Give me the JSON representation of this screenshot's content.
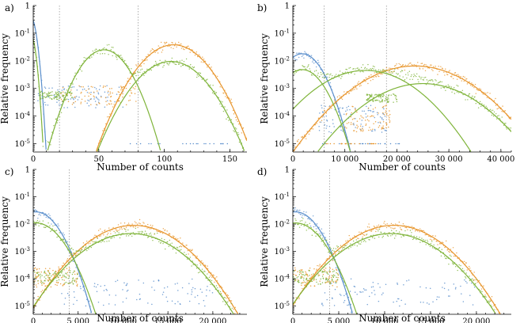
{
  "colors": {
    "blue": "#5b8fcc",
    "orange": "#e8962e",
    "green": "#7fb43a",
    "thresholds": "#9a9a9a"
  },
  "chart_data": [
    {
      "panel_label": "a)",
      "type": "scatter",
      "ylabel": "Relative frequency",
      "xlabel": "Number of counts",
      "xlim": [
        0,
        163
      ],
      "ylog": true,
      "ylim_exp": [
        -5.3,
        0
      ],
      "x_ticks": [
        0,
        50,
        100,
        150
      ],
      "x_tick_labels": [
        "0",
        "50",
        "100",
        "150"
      ],
      "y_tick_labels": [
        "1",
        "10",
        "10",
        "10",
        "10",
        "10"
      ],
      "y_tick_exponents": [
        "",
        "-1",
        "-2",
        "-3",
        "-4",
        "-5"
      ],
      "threshold_lines": [
        20,
        80
      ],
      "series": [
        {
          "name": "blue",
          "curve": [
            {
              "type": "gauss",
              "mu": -2,
              "sigma": 2.5,
              "peak": 0.4,
              "min_log": -5.3
            }
          ],
          "noise": {
            "x": [
              3,
              70
            ],
            "log_y": [
              -3.7,
              -2.9
            ]
          },
          "floor_x": [
            72,
            152
          ]
        },
        {
          "name": "orange",
          "curve": [
            {
              "type": "gauss",
              "mu": 107,
              "sigma": 14,
              "peak": 0.038,
              "min_log": -5.3
            }
          ],
          "noise": {
            "x": [
              20,
              80
            ],
            "log_y": [
              -3.6,
              -2.9
            ]
          }
        },
        {
          "name": "green",
          "curve": [
            {
              "type": "gauss",
              "mu": -2,
              "sigma": 2.2,
              "peak": 0.09,
              "min_log": -5.3
            },
            {
              "type": "gauss",
              "mu": 54,
              "sigma": 10.5,
              "peak": 0.025,
              "min_log": -5.3
            },
            {
              "type": "gauss",
              "mu": 105,
              "sigma": 14.5,
              "peak": 0.0095,
              "min_log": -5.3
            }
          ],
          "noise": {
            "x": [
              5,
              30
            ],
            "log_y": [
              -3.4,
              -3.1
            ]
          }
        }
      ]
    },
    {
      "panel_label": "b)",
      "type": "scatter",
      "ylabel": "Relative frequency",
      "xlabel": "Number of counts",
      "xlim": [
        0,
        42000
      ],
      "ylog": true,
      "ylim_exp": [
        -5.3,
        0
      ],
      "x_ticks": [
        0,
        10000,
        20000,
        30000,
        40000
      ],
      "x_tick_labels": [
        "0",
        "10 000",
        "20 000",
        "30 000",
        "40 000"
      ],
      "y_tick_labels": [
        "1",
        "10",
        "10",
        "10",
        "10",
        "10"
      ],
      "y_tick_exponents": [
        "",
        "-1",
        "-2",
        "-3",
        "-4",
        "-5"
      ],
      "threshold_lines": [
        6000,
        18000
      ],
      "series": [
        {
          "name": "blue",
          "curve": [
            {
              "type": "gauss",
              "mu": 1800,
              "sigma": 2300,
              "peak": 0.018,
              "min_log": -5.3
            }
          ],
          "noise": {
            "x": [
              5000,
              18000
            ],
            "log_y": [
              -4.6,
              -3.6
            ]
          },
          "floor_x": [
            5000,
            21000
          ]
        },
        {
          "name": "orange",
          "curve": [
            {
              "type": "gauss",
              "mu": 23500,
              "sigma": 6200,
              "peak": 0.0065,
              "min_log": -5.3
            }
          ],
          "noise": {
            "x": [
              10000,
              19000
            ],
            "log_y": [
              -4.6,
              -3.6
            ]
          },
          "floor_x": [
            6000,
            16000
          ]
        },
        {
          "name": "green",
          "curve": [
            {
              "type": "gauss",
              "mu": 1800,
              "sigma": 2500,
              "peak": 0.0048,
              "min_log": -5.3
            },
            {
              "type": "gauss",
              "mu": 14000,
              "sigma": 5500,
              "peak": 0.0045,
              "min_log": -5.3
            },
            {
              "type": "gauss",
              "mu": 25000,
              "sigma": 6000,
              "peak": 0.0015,
              "min_log": -5.3
            }
          ],
          "noise": {
            "x": [
              14000,
              20000
            ],
            "log_y": [
              -3.5,
              -3.2
            ]
          }
        }
      ]
    },
    {
      "panel_label": "c)",
      "type": "scatter",
      "ylabel": "Relative frequency",
      "xlabel": "Number of counts",
      "xlim": [
        0,
        23800
      ],
      "ylog": true,
      "ylim_exp": [
        -5.3,
        0
      ],
      "x_ticks": [
        0,
        5000,
        10000,
        15000,
        20000
      ],
      "x_tick_labels": [
        "0",
        "5 000",
        "10 000",
        "15 000",
        "20 000"
      ],
      "y_tick_labels": [
        "1",
        "10",
        "10",
        "10",
        "10",
        "10"
      ],
      "y_tick_exponents": [
        "",
        "-1",
        "-2",
        "-3",
        "-4",
        "-5"
      ],
      "threshold_lines": [
        4000
      ],
      "series": [
        {
          "name": "blue",
          "curve": [
            {
              "type": "gauss",
              "mu": 300,
              "sigma": 1500,
              "peak": 0.028,
              "min_log": -5.3
            }
          ],
          "noise": {
            "x": [
              3000,
              20000
            ],
            "log_y": [
              -5.0,
              -4.0
            ]
          }
        },
        {
          "name": "orange",
          "curve": [
            {
              "type": "gauss",
              "mu": 11200,
              "sigma": 3000,
              "peak": 0.009,
              "min_log": -5.3
            }
          ],
          "noise": {
            "x": [
              0,
              5000
            ],
            "log_y": [
              -4.3,
              -3.6
            ]
          }
        },
        {
          "name": "green",
          "curve": [
            {
              "type": "gauss",
              "mu": 300,
              "sigma": 1700,
              "peak": 0.011,
              "min_log": -5.3
            },
            {
              "type": "gauss",
              "mu": 10900,
              "sigma": 3100,
              "peak": 0.0045,
              "min_log": -5.3
            }
          ],
          "noise": {
            "x": [
              0,
              5000
            ],
            "log_y": [
              -4.2,
              -3.7
            ]
          }
        }
      ]
    },
    {
      "panel_label": "d)",
      "type": "scatter",
      "ylabel": "Relative frequency",
      "xlabel": "Number of counts",
      "xlim": [
        0,
        23800
      ],
      "ylog": true,
      "ylim_exp": [
        -5.3,
        0
      ],
      "x_ticks": [
        0,
        5000,
        10000,
        15000,
        20000
      ],
      "x_tick_labels": [
        "0",
        "5 000",
        "10 000",
        "15 000",
        "20 000"
      ],
      "y_tick_labels": [
        "1",
        "10",
        "10",
        "10",
        "10",
        "10"
      ],
      "y_tick_exponents": [
        "",
        "-1",
        "-2",
        "-3",
        "-4",
        "-5"
      ],
      "threshold_lines": [
        4000
      ],
      "series": [
        {
          "name": "blue",
          "curve": [
            {
              "type": "gauss",
              "mu": 300,
              "sigma": 1500,
              "peak": 0.028,
              "min_log": -5.3
            }
          ],
          "noise": {
            "x": [
              3000,
              20000
            ],
            "log_y": [
              -5.0,
              -4.0
            ]
          }
        },
        {
          "name": "orange",
          "curve": [
            {
              "type": "gauss",
              "mu": 11000,
              "sigma": 3000,
              "peak": 0.009,
              "min_log": -5.3
            }
          ],
          "noise": {
            "x": [
              0,
              5000
            ],
            "log_y": [
              -4.3,
              -3.6
            ]
          }
        },
        {
          "name": "green",
          "curve": [
            {
              "type": "gauss",
              "mu": 300,
              "sigma": 1700,
              "peak": 0.011,
              "min_log": -5.3
            },
            {
              "type": "gauss",
              "mu": 10700,
              "sigma": 3100,
              "peak": 0.0045,
              "min_log": -5.3
            }
          ],
          "noise": {
            "x": [
              0,
              5000
            ],
            "log_y": [
              -4.2,
              -3.7
            ]
          }
        }
      ]
    }
  ]
}
